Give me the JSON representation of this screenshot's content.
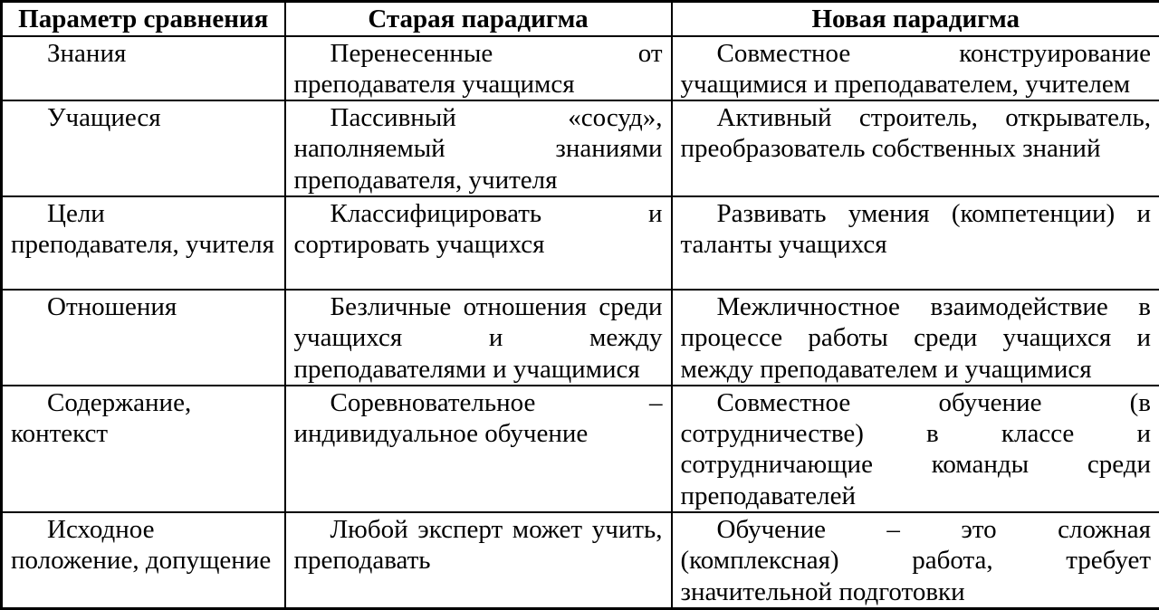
{
  "colors": {
    "border": "#000000",
    "background": "#ffffff",
    "text": "#000000"
  },
  "table": {
    "headers": {
      "parameter": "Параметр сравнения",
      "old": "Старая парадигма",
      "new": "Новая парадигма"
    },
    "rows": [
      {
        "parameter": "Знания",
        "old": "Перенесенные от преподавателя учащимся",
        "new": "Совместное конструирование учащимися и преподавателем, учителем"
      },
      {
        "parameter": "Учащиеся",
        "old": "Пассивный «сосуд», наполняемый знаниями преподавателя, учителя",
        "new": "Активный строитель, открыватель, преобразователь собственных знаний"
      },
      {
        "parameter": "Цели преподавателя, учителя",
        "old": "Классифицировать и сортировать учащихся",
        "new": "Развивать умения (компетенции) и таланты учащихся"
      },
      {
        "parameter": "Отношения",
        "old": "Безличные отношения среди учащихся и между преподавателями и учащимися",
        "new": "Межличностное взаимодействие в процессе  работы среди учащихся и между преподавателем и учащимися"
      },
      {
        "parameter": "Содержание, контекст",
        "old": "Соревновательное – индивидуальное обучение",
        "new": "Совместное обучение (в сотрудничестве) в классе и сотрудничающие команды среди преподавателей"
      },
      {
        "parameter": "Исходное положение, допущение",
        "old": "Любой эксперт может учить, преподавать",
        "new": "Обучение – это сложная (комплексная) работа, требует значительной подготовки"
      }
    ]
  }
}
